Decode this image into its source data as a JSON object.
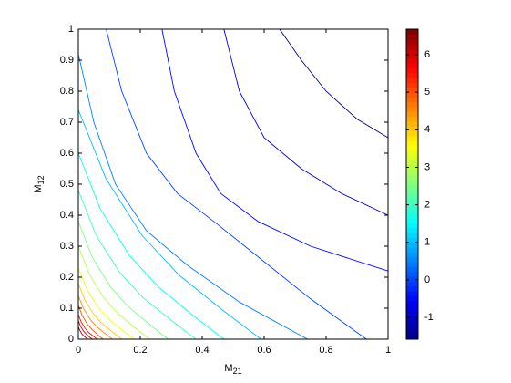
{
  "chart_data": {
    "type": "contour",
    "xlabel": "M",
    "xlabel_sub": "21",
    "ylabel": "M",
    "ylabel_sub": "12",
    "xlim": [
      0,
      1
    ],
    "ylim": [
      0,
      1
    ],
    "xticks": [
      0,
      0.2,
      0.4,
      0.6,
      0.8,
      1
    ],
    "yticks": [
      0,
      0.1,
      0.2,
      0.3,
      0.4,
      0.5,
      0.6,
      0.7,
      0.8,
      0.9,
      1
    ],
    "colormap": "jet",
    "clim": [
      -1.58,
      6.68
    ],
    "cticks": [
      -1,
      0,
      1,
      2,
      3,
      4,
      5,
      6
    ],
    "series": [
      {
        "level": -1.5,
        "x": [
          0.65,
          0.72,
          0.8,
          0.9,
          1
        ],
        "y": [
          1,
          0.9,
          0.8,
          0.71,
          0.65
        ]
      },
      {
        "level": -1,
        "x": [
          0.47,
          0.52,
          0.6,
          0.72,
          0.85,
          1
        ],
        "y": [
          1,
          0.8,
          0.65,
          0.55,
          0.47,
          0.4
        ]
      },
      {
        "level": -0.5,
        "x": [
          0.27,
          0.31,
          0.38,
          0.46,
          0.58,
          0.75,
          1
        ],
        "y": [
          1,
          0.8,
          0.6,
          0.47,
          0.38,
          0.3,
          0.22
        ]
      },
      {
        "level": 0,
        "x": [
          0.09,
          0.14,
          0.22,
          0.32,
          0.45,
          0.6,
          0.75,
          0.93
        ],
        "y": [
          1,
          0.8,
          0.6,
          0.47,
          0.37,
          0.25,
          0.13,
          0
        ]
      },
      {
        "level": 0.5,
        "x": [
          0,
          0.05,
          0.12,
          0.22,
          0.35,
          0.52,
          0.74
        ],
        "y": [
          0.92,
          0.7,
          0.5,
          0.35,
          0.24,
          0.12,
          0
        ]
      },
      {
        "level": 1,
        "x": [
          0,
          0.089,
          0.207,
          0.325,
          0.472,
          0.59
        ],
        "y": [
          0.74,
          0.518,
          0.333,
          0.207,
          0.089,
          0
        ]
      },
      {
        "level": 1.5,
        "x": [
          0,
          0.071,
          0.165,
          0.259,
          0.376,
          0.47
        ],
        "y": [
          0.6,
          0.42,
          0.27,
          0.168,
          0.072,
          0
        ]
      },
      {
        "level": 2,
        "x": [
          0,
          0.057,
          0.133,
          0.209,
          0.304,
          0.38
        ],
        "y": [
          0.48,
          0.336,
          0.216,
          0.134,
          0.058,
          0
        ]
      },
      {
        "level": 2.5,
        "x": [
          0,
          0.044,
          0.102,
          0.16,
          0.232,
          0.29
        ],
        "y": [
          0.38,
          0.266,
          0.171,
          0.106,
          0.046,
          0
        ]
      },
      {
        "level": 3,
        "x": [
          0,
          0.035,
          0.081,
          0.127,
          0.184,
          0.23
        ],
        "y": [
          0.3,
          0.21,
          0.135,
          0.084,
          0.036,
          0
        ]
      },
      {
        "level": 3.5,
        "x": [
          0,
          0.027,
          0.063,
          0.099,
          0.144,
          0.18
        ],
        "y": [
          0.23,
          0.161,
          0.104,
          0.064,
          0.028,
          0
        ]
      },
      {
        "level": 4,
        "x": [
          0,
          0.021,
          0.049,
          0.077,
          0.112,
          0.14
        ],
        "y": [
          0.18,
          0.126,
          0.081,
          0.05,
          0.022,
          0
        ]
      },
      {
        "level": 4.5,
        "x": [
          0,
          0.017,
          0.039,
          0.061,
          0.088,
          0.11
        ],
        "y": [
          0.14,
          0.098,
          0.063,
          0.039,
          0.017,
          0
        ]
      },
      {
        "level": 5,
        "x": [
          0,
          0.012,
          0.028,
          0.044,
          0.064,
          0.08
        ],
        "y": [
          0.11,
          0.077,
          0.05,
          0.031,
          0.013,
          0
        ]
      },
      {
        "level": 5.5,
        "x": [
          0,
          0.009,
          0.021,
          0.033,
          0.048,
          0.06
        ],
        "y": [
          0.08,
          0.056,
          0.036,
          0.022,
          0.01,
          0
        ]
      },
      {
        "level": 6,
        "x": [
          0,
          0.007,
          0.016,
          0.025,
          0.036,
          0.045
        ],
        "y": [
          0.06,
          0.042,
          0.027,
          0.017,
          0.007,
          0
        ]
      },
      {
        "level": 6.5,
        "x": [
          0,
          0.005,
          0.011,
          0.017,
          0.024,
          0.03
        ],
        "y": [
          0.04,
          0.028,
          0.018,
          0.011,
          0.005,
          0
        ]
      }
    ]
  }
}
